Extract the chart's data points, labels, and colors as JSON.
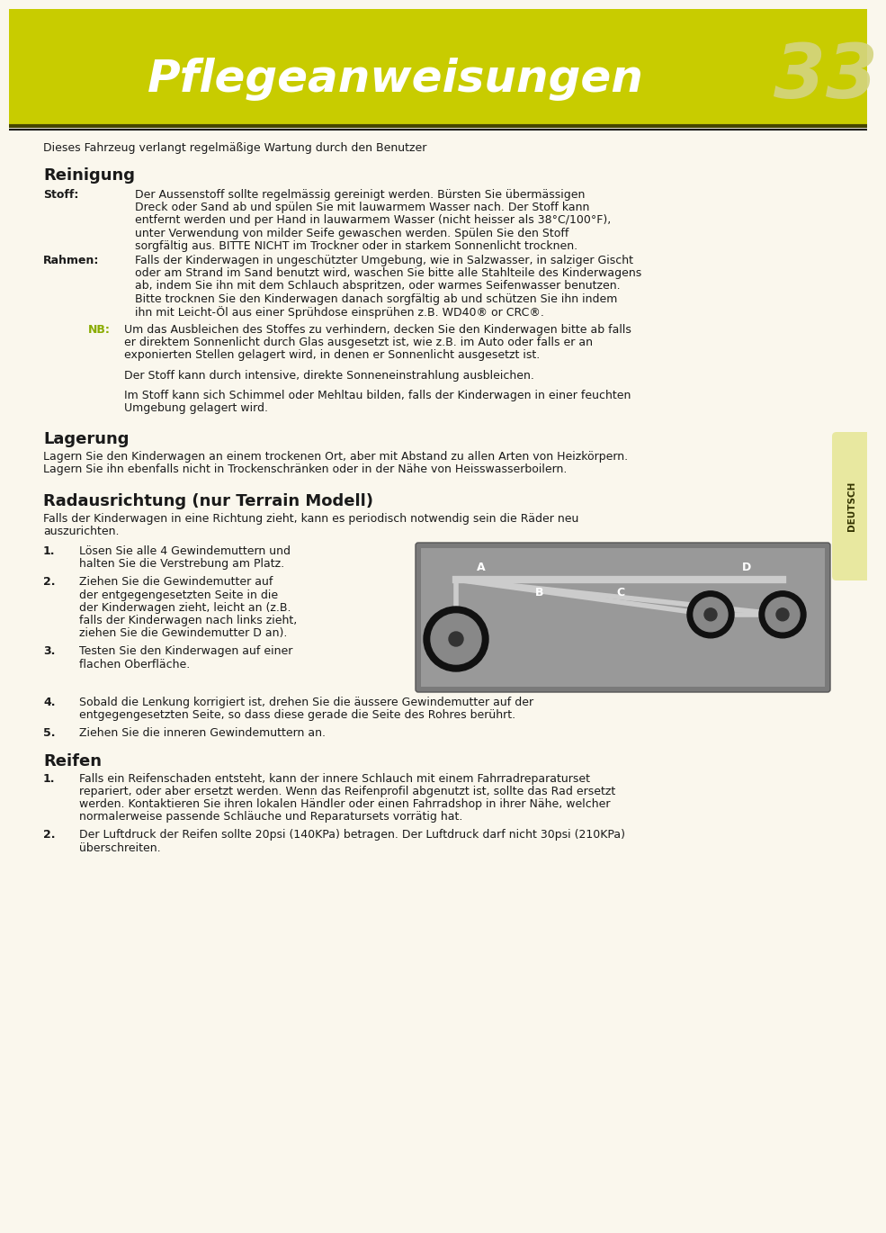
{
  "header_bg_color": "#c8cc00",
  "header_text": "Pflegeanweisungen",
  "header_number": "33",
  "body_bg_color": "#faf7ed",
  "tab_color": "#e8e8a0",
  "tab_text": "DEUTSCH",
  "text_color": "#1a1a1a",
  "nb_color": "#8aac00",
  "heading_color": "#1a1a1a",
  "font_size_header": 36,
  "font_size_body": 9.0,
  "font_size_heading": 13,
  "intro_text": "Dieses Fahrzeug verlangt regelmäßige Wartung durch den Benutzer",
  "section1_heading": "Reinigung",
  "stoff_label": "Stoff:",
  "stoff_text": "Der Aussenstoff sollte regelmässig gereinigt werden. Bürsten Sie übermässigen\nDreck oder Sand ab und spülen Sie mit lauwarmem Wasser nach. Der Stoff kann\nentfernt werden und per Hand in lauwarmem Wasser (nicht heisser als 38°C/100°F),\nunter Verwendung von milder Seife gewaschen werden. Spülen Sie den Stoff\nsorgfältig aus. BITTE NICHT im Trockner oder in starkem Sonnenlicht trocknen.",
  "rahmen_label": "Rahmen:",
  "rahmen_text": "Falls der Kinderwagen in ungeschützter Umgebung, wie in Salzwasser, in salziger Gischt\noder am Strand im Sand benutzt wird, waschen Sie bitte alle Stahlteile des Kinderwagens\nab, indem Sie ihn mit dem Schlauch abspritzen, oder warmes Seifenwasser benutzen.\nBitte trocknen Sie den Kinderwagen danach sorgfältig ab und schützen Sie ihn indem\nihn mit Leicht-Öl aus einer Sprühdose einsprühen z.B. WD40® or CRC®.",
  "nb_label": "NB:",
  "nb_text1": "Um das Ausbleichen des Stoffes zu verhindern, decken Sie den Kinderwagen bitte ab falls\ner direktem Sonnenlicht durch Glas ausgesetzt ist, wie z.B. im Auto oder falls er an\nexponierten Stellen gelagert wird, in denen er Sonnenlicht ausgesetzt ist.",
  "nb_text2": "Der Stoff kann durch intensive, direkte Sonneneinstrahlung ausbleichen.",
  "nb_text3": "Im Stoff kann sich Schimmel oder Mehltau bilden, falls der Kinderwagen in einer feuchten\nUmgebung gelagert wird.",
  "section2_heading": "Lagerung",
  "lagerung_text": "Lagern Sie den Kinderwagen an einem trockenen Ort, aber mit Abstand zu allen Arten von Heizkörpern.\nLagern Sie ihn ebenfalls nicht in Trockenschränken oder in der Nähe von Heisswasserboilern.",
  "section3_heading": "Radausrichtung (nur Terrain Modell)",
  "radaus_intro": "Falls der Kinderwagen in eine Richtung zieht, kann es periodisch notwendig sein die Räder neu\nauszurichten.",
  "step1_label": "1.",
  "step1_text": "Lösen Sie alle 4 Gewindemuttern und\nhalten Sie die Verstrebung am Platz.",
  "step2_label": "2.",
  "step2_text": "Ziehen Sie die Gewindemutter auf\nder entgegengesetzten Seite in die\nder Kinderwagen zieht, leicht an (z.B.\nfalls der Kinderwagen nach links zieht,\nziehen Sie die Gewindemutter D an).",
  "step3_label": "3.",
  "step3_text": "Testen Sie den Kinderwagen auf einer\nflachen Oberfläche.",
  "step4_label": "4.",
  "step4_text": "Sobald die Lenkung korrigiert ist, drehen Sie die äussere Gewindemutter auf der\nentgegengesetzten Seite, so dass diese gerade die Seite des Rohres berührt.",
  "step5_label": "5.",
  "step5_text": "Ziehen Sie die inneren Gewindemuttern an.",
  "section4_heading": "Reifen",
  "reifen1_label": "1.",
  "reifen1_text": "Falls ein Reifenschaden entsteht, kann der innere Schlauch mit einem Fahrradreparaturset\nrepariert, oder aber ersetzt werden. Wenn das Reifenprofil abgenutzt ist, sollte das Rad ersetzt\nwerden. Kontaktieren Sie ihren lokalen Händler oder einen Fahrradshop in ihrer Nähe, welcher\nnormalerweise passende Schläuche und Reparatursets vorrätig hat.",
  "reifen2_label": "2.",
  "reifen2_text": "Der Luftdruck der Reifen sollte 20psi (140KPa) betragen. Der Luftdruck darf nicht 30psi (210KPa)\nüberschreiten."
}
